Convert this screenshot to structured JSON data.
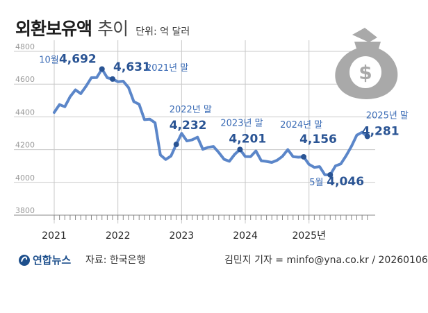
{
  "header": {
    "title": "외환보유액",
    "subtitle": "추이",
    "unit": "단위: 억 달러"
  },
  "footer": {
    "logo": "연합뉴스",
    "source": "자료: 한국은행",
    "credit": "김민지 기자 = minfo@yna.co.kr / 20260106"
  },
  "colors": {
    "line": "#5b86c9",
    "marker": "#2a5494",
    "label": "#2a5494",
    "callout": "#3a6bb5",
    "grid": "#c8c8c8",
    "axis_text": "#999999",
    "bag": "#a9a9a9"
  },
  "icon": "money-bag-icon",
  "chart_data": {
    "type": "line",
    "title": "외환보유액 추이",
    "unit": "억 달러",
    "ylim": [
      3800,
      4800
    ],
    "yticks": [
      3800,
      4000,
      4200,
      4400,
      4600,
      4800
    ],
    "xticks": [
      "2021",
      "2022",
      "2023",
      "2024",
      "2025년"
    ],
    "grid": true,
    "x": [
      "2021-01",
      "2021-02",
      "2021-03",
      "2021-04",
      "2021-05",
      "2021-06",
      "2021-07",
      "2021-08",
      "2021-09",
      "2021-10",
      "2021-11",
      "2021-12",
      "2022-01",
      "2022-02",
      "2022-03",
      "2022-04",
      "2022-05",
      "2022-06",
      "2022-07",
      "2022-08",
      "2022-09",
      "2022-10",
      "2022-11",
      "2022-12",
      "2023-01",
      "2023-02",
      "2023-03",
      "2023-04",
      "2023-05",
      "2023-06",
      "2023-07",
      "2023-08",
      "2023-09",
      "2023-10",
      "2023-11",
      "2023-12",
      "2024-01",
      "2024-02",
      "2024-03",
      "2024-04",
      "2024-05",
      "2024-06",
      "2024-07",
      "2024-08",
      "2024-09",
      "2024-10",
      "2024-11",
      "2024-12",
      "2025-01",
      "2025-02",
      "2025-03",
      "2025-04",
      "2025-05",
      "2025-06",
      "2025-07",
      "2025-08",
      "2025-09",
      "2025-10",
      "2025-11",
      "2025-12"
    ],
    "values": [
      4427,
      4475,
      4462,
      4523,
      4565,
      4542,
      4587,
      4639,
      4640,
      4692,
      4639,
      4631,
      4615,
      4618,
      4579,
      4493,
      4477,
      4383,
      4386,
      4364,
      4168,
      4140,
      4161,
      4232,
      4299,
      4253,
      4260,
      4276,
      4202,
      4214,
      4219,
      4183,
      4141,
      4129,
      4171,
      4201,
      4158,
      4157,
      4192,
      4132,
      4128,
      4122,
      4135,
      4159,
      4200,
      4157,
      4154,
      4156,
      4110,
      4092,
      4096,
      4046,
      4046,
      4101,
      4113,
      4163,
      4220,
      4288,
      4306,
      4281
    ],
    "annotations": [
      {
        "x": "2021-10",
        "prefix": "10월",
        "value": "4,692"
      },
      {
        "x": "2021-12",
        "value": "4,631",
        "suffix": "2021년 말"
      },
      {
        "x": "2022-12",
        "label": "2022년 말",
        "value": "4,232"
      },
      {
        "x": "2023-12",
        "label": "2023년 말",
        "value": "4,201"
      },
      {
        "x": "2024-12",
        "label": "2024년 말",
        "value": "4,156"
      },
      {
        "x": "2025-05",
        "prefix": "5월",
        "value": "4,046"
      },
      {
        "x": "2025-12",
        "label": "2025년 말",
        "value": "4,281"
      }
    ]
  }
}
